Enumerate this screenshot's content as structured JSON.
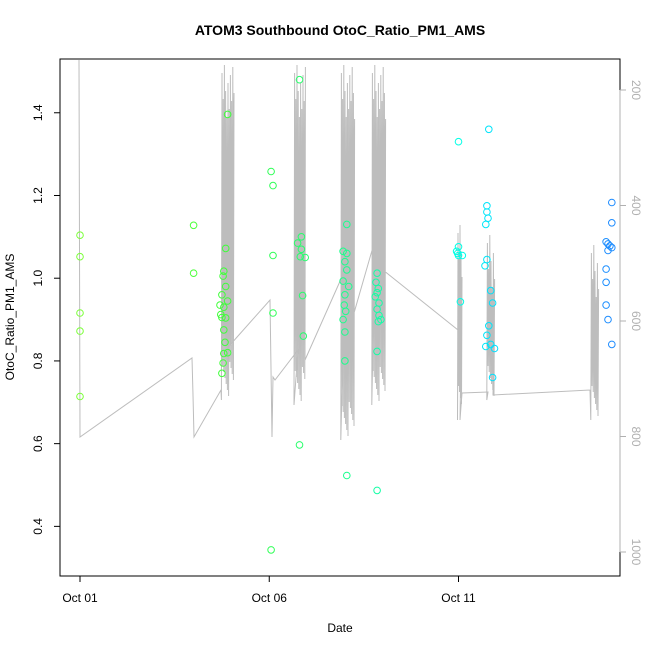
{
  "chart_data": {
    "type": "scatter",
    "title": "ATOM3 Southbound OtoC_Ratio_PM1_AMS",
    "xlabel": "Date",
    "ylabel": "OtoC_Ratio_PM1_AMS",
    "x_ticks": [
      "Oct 01",
      "Oct 06",
      "Oct 11"
    ],
    "xlim": [
      0,
      14.3
    ],
    "ylim": [
      0.28,
      1.53
    ],
    "y_ticks": [
      0.4,
      0.6,
      0.8,
      1.0,
      1.2,
      1.4
    ],
    "y2_ticks": [
      200,
      400,
      600,
      800,
      1000
    ],
    "y2lim": [
      1040,
      137
    ],
    "grid": false,
    "color_scale": [
      "#7cff3a",
      "#2cff3a",
      "#1affa8",
      "#00ffff",
      "#1e90ff"
    ],
    "series": [
      {
        "points": [
          [
            0.0,
            1.104
          ],
          [
            0.0,
            1.052
          ],
          [
            0.0,
            0.916
          ],
          [
            0.0,
            0.872
          ],
          [
            0.0,
            0.714
          ],
          [
            3.0,
            1.128
          ],
          [
            3.0,
            1.012
          ],
          [
            3.9,
            1.396
          ],
          [
            3.85,
            1.072
          ],
          [
            3.8,
            1.017
          ],
          [
            3.78,
            1.005
          ],
          [
            3.85,
            0.98
          ],
          [
            3.75,
            0.96
          ],
          [
            3.9,
            0.945
          ],
          [
            3.7,
            0.935
          ],
          [
            3.8,
            0.93
          ],
          [
            3.72,
            0.912
          ],
          [
            3.75,
            0.905
          ],
          [
            3.85,
            0.904
          ],
          [
            3.8,
            0.875
          ],
          [
            3.83,
            0.845
          ],
          [
            3.9,
            0.82
          ],
          [
            3.8,
            0.818
          ],
          [
            3.78,
            0.795
          ],
          [
            3.75,
            0.77
          ],
          [
            5.05,
            1.258
          ],
          [
            5.1,
            1.224
          ],
          [
            5.1,
            1.055
          ],
          [
            5.1,
            0.916
          ],
          [
            5.05,
            0.343
          ],
          [
            5.8,
            1.48
          ],
          [
            5.85,
            1.1
          ],
          [
            5.75,
            1.085
          ],
          [
            5.85,
            1.07
          ],
          [
            5.82,
            1.052
          ],
          [
            5.95,
            1.05
          ],
          [
            5.88,
            0.958
          ],
          [
            5.9,
            0.86
          ],
          [
            5.8,
            0.597
          ],
          [
            7.05,
            1.13
          ],
          [
            6.95,
            1.065
          ],
          [
            7.05,
            1.06
          ],
          [
            7.0,
            1.04
          ],
          [
            7.05,
            1.02
          ],
          [
            6.95,
            0.993
          ],
          [
            7.1,
            0.98
          ],
          [
            7.0,
            0.96
          ],
          [
            6.98,
            0.935
          ],
          [
            7.02,
            0.92
          ],
          [
            6.95,
            0.9
          ],
          [
            7.0,
            0.87
          ],
          [
            7.0,
            0.8
          ],
          [
            7.05,
            0.523
          ],
          [
            7.85,
            1.012
          ],
          [
            7.82,
            0.99
          ],
          [
            7.88,
            0.975
          ],
          [
            7.85,
            0.965
          ],
          [
            7.8,
            0.955
          ],
          [
            7.9,
            0.94
          ],
          [
            7.85,
            0.925
          ],
          [
            7.9,
            0.91
          ],
          [
            7.95,
            0.9
          ],
          [
            7.88,
            0.895
          ],
          [
            7.85,
            0.823
          ],
          [
            7.85,
            0.487
          ],
          [
            10.0,
            1.33
          ],
          [
            10.0,
            1.076
          ],
          [
            9.95,
            1.065
          ],
          [
            9.98,
            1.06
          ],
          [
            10.0,
            1.055
          ],
          [
            10.1,
            1.055
          ],
          [
            10.05,
            0.943
          ],
          [
            10.8,
            1.36
          ],
          [
            10.75,
            1.175
          ],
          [
            10.75,
            1.16
          ],
          [
            10.78,
            1.145
          ],
          [
            10.72,
            1.13
          ],
          [
            10.75,
            1.045
          ],
          [
            10.7,
            1.03
          ],
          [
            10.85,
            0.97
          ],
          [
            10.9,
            0.94
          ],
          [
            10.8,
            0.885
          ],
          [
            10.75,
            0.862
          ],
          [
            10.85,
            0.84
          ],
          [
            10.72,
            0.835
          ],
          [
            10.95,
            0.83
          ],
          [
            10.9,
            0.76
          ],
          [
            14.05,
            1.183
          ],
          [
            14.05,
            1.134
          ],
          [
            13.9,
            1.088
          ],
          [
            13.95,
            1.083
          ],
          [
            14.0,
            1.078
          ],
          [
            14.05,
            1.074
          ],
          [
            13.95,
            1.067
          ],
          [
            13.9,
            1.022
          ],
          [
            13.9,
            0.99
          ],
          [
            13.9,
            0.935
          ],
          [
            13.95,
            0.9
          ],
          [
            14.05,
            0.84
          ]
        ]
      }
    ]
  }
}
